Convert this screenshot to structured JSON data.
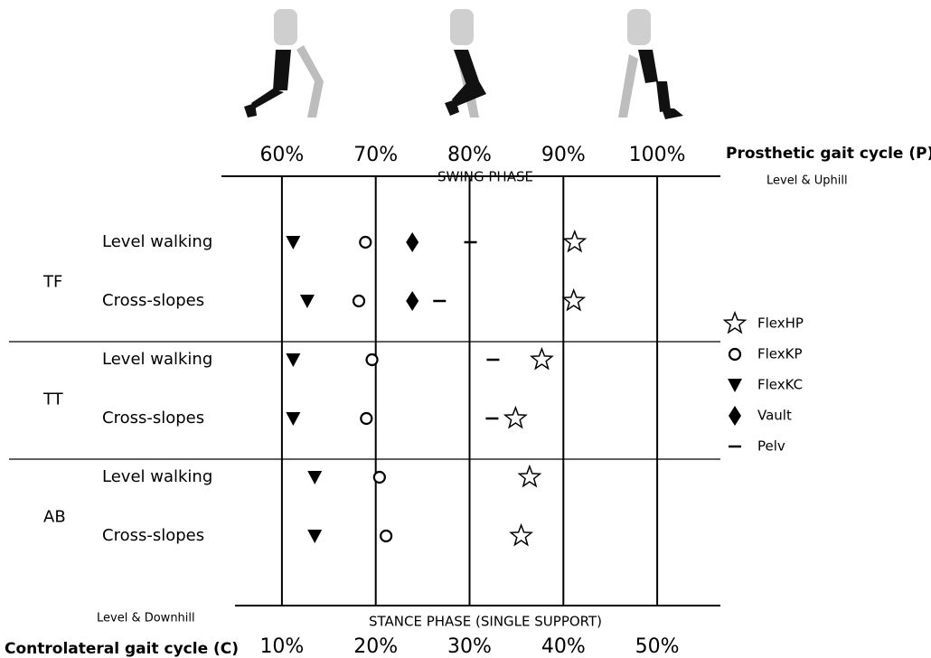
{
  "chart_data": {
    "type": "event",
    "x_label": "Prosthetic gait cycle (P)",
    "x_note": "Level & Uphill",
    "x2_label": "Controlateral gait cycle (C)",
    "x2_note": "Level & Downhill",
    "top_phase": "SWING PHASE",
    "bottom_phase": "STANCE PHASE (SINGLE SUPPORT)",
    "groups": [
      "TF",
      "TT",
      "AB"
    ],
    "categories": [
      "Level walking",
      "Cross-slopes",
      "Level walking",
      "Cross-slopes",
      "Level walking",
      "Cross-slopes"
    ],
    "xlim": [
      55,
      105
    ],
    "xticks": [
      {
        "value": 60,
        "label": "60%"
      },
      {
        "value": 70,
        "label": "70%"
      },
      {
        "value": 80,
        "label": "80%"
      },
      {
        "value": 90,
        "label": "90%"
      },
      {
        "value": 100,
        "label": "100%"
      }
    ],
    "x2lim": [
      5,
      55
    ],
    "x2ticks": [
      {
        "value": 10,
        "label": "10%"
      },
      {
        "value": 20,
        "label": "20%"
      },
      {
        "value": 30,
        "label": "30%"
      },
      {
        "value": 40,
        "label": "40%"
      },
      {
        "value": 50,
        "label": "50%"
      }
    ],
    "grid": true,
    "series": [
      {
        "name": "FlexHP",
        "marker": "star",
        "color": "#000000",
        "values": [
          91.2,
          91.1,
          87.7,
          84.9,
          86.4,
          85.5
        ]
      },
      {
        "name": "FlexKP",
        "marker": "circle",
        "color": "#000000",
        "values": [
          68.9,
          68.2,
          69.6,
          69.0,
          70.4,
          71.1
        ]
      },
      {
        "name": "FlexKC",
        "marker": "triangle",
        "color": "#000000",
        "values": [
          61.2,
          62.7,
          61.2,
          61.2,
          63.5,
          63.5
        ]
      },
      {
        "name": "Vault",
        "marker": "diamond",
        "color": "#000000",
        "values": [
          73.9,
          73.9,
          null,
          null,
          null,
          null
        ]
      },
      {
        "name": "Pelv",
        "marker": "dash",
        "color": "#000000",
        "values": [
          80.1,
          76.8,
          82.5,
          82.4,
          null,
          null
        ]
      }
    ]
  }
}
